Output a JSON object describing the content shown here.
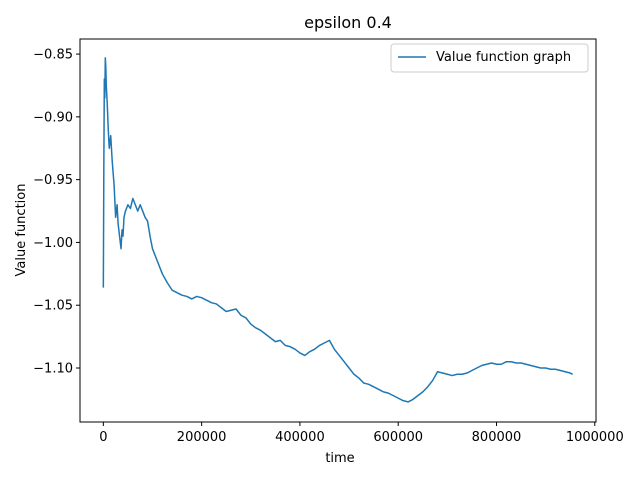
{
  "chart_data": {
    "type": "line",
    "title": "epsilon 0.4",
    "xlabel": "time",
    "ylabel": "Value function",
    "xlim": [
      -47500,
      1002500
    ],
    "ylim": [
      -1.143,
      -0.838
    ],
    "xticks": [
      0,
      200000,
      400000,
      600000,
      800000,
      1000000
    ],
    "xtick_labels": [
      "0",
      "200000",
      "400000",
      "600000",
      "800000",
      "1000000"
    ],
    "yticks": [
      -1.1,
      -1.05,
      -1.0,
      -0.95,
      -0.9,
      -0.85
    ],
    "ytick_labels": [
      "−1.10",
      "−1.05",
      "−1.00",
      "−0.95",
      "−0.90",
      "−0.85"
    ],
    "grid": false,
    "legend_placement": "top-right",
    "series": [
      {
        "name": "Value function graph",
        "color": "#1f77b4",
        "x": [
          0,
          1000,
          2000,
          3000,
          4000,
          5000,
          6000,
          8000,
          10000,
          12000,
          15000,
          18000,
          20000,
          22000,
          25000,
          28000,
          30000,
          33000,
          36000,
          38000,
          40000,
          42000,
          45000,
          50000,
          55000,
          60000,
          65000,
          70000,
          75000,
          80000,
          85000,
          90000,
          95000,
          100000,
          110000,
          120000,
          130000,
          140000,
          150000,
          160000,
          170000,
          180000,
          190000,
          200000,
          210000,
          220000,
          230000,
          240000,
          250000,
          260000,
          270000,
          280000,
          290000,
          300000,
          310000,
          320000,
          330000,
          340000,
          350000,
          360000,
          370000,
          380000,
          390000,
          400000,
          410000,
          420000,
          430000,
          440000,
          450000,
          460000,
          470000,
          480000,
          490000,
          500000,
          510000,
          520000,
          530000,
          540000,
          550000,
          560000,
          570000,
          580000,
          590000,
          600000,
          610000,
          620000,
          630000,
          640000,
          650000,
          660000,
          670000,
          680000,
          690000,
          700000,
          710000,
          720000,
          730000,
          740000,
          750000,
          760000,
          770000,
          780000,
          790000,
          800000,
          810000,
          820000,
          830000,
          840000,
          850000,
          860000,
          870000,
          880000,
          890000,
          900000,
          910000,
          920000,
          930000,
          940000,
          950000,
          955000
        ],
        "y": [
          -1.036,
          -0.94,
          -0.87,
          -0.885,
          -0.853,
          -0.86,
          -0.875,
          -0.89,
          -0.91,
          -0.925,
          -0.915,
          -0.935,
          -0.945,
          -0.955,
          -0.98,
          -0.97,
          -0.985,
          -0.995,
          -1.005,
          -0.99,
          -0.995,
          -0.98,
          -0.975,
          -0.97,
          -0.973,
          -0.965,
          -0.97,
          -0.975,
          -0.97,
          -0.975,
          -0.98,
          -0.983,
          -0.995,
          -1.005,
          -1.015,
          -1.025,
          -1.032,
          -1.038,
          -1.04,
          -1.042,
          -1.043,
          -1.045,
          -1.043,
          -1.044,
          -1.046,
          -1.048,
          -1.049,
          -1.052,
          -1.055,
          -1.054,
          -1.053,
          -1.058,
          -1.06,
          -1.065,
          -1.068,
          -1.07,
          -1.073,
          -1.076,
          -1.079,
          -1.078,
          -1.082,
          -1.083,
          -1.085,
          -1.088,
          -1.09,
          -1.087,
          -1.085,
          -1.082,
          -1.08,
          -1.078,
          -1.085,
          -1.09,
          -1.095,
          -1.1,
          -1.105,
          -1.108,
          -1.112,
          -1.113,
          -1.115,
          -1.117,
          -1.119,
          -1.12,
          -1.122,
          -1.124,
          -1.126,
          -1.127,
          -1.125,
          -1.122,
          -1.119,
          -1.115,
          -1.11,
          -1.103,
          -1.104,
          -1.105,
          -1.106,
          -1.105,
          -1.105,
          -1.104,
          -1.102,
          -1.1,
          -1.098,
          -1.097,
          -1.096,
          -1.097,
          -1.097,
          -1.095,
          -1.095,
          -1.096,
          -1.096,
          -1.097,
          -1.098,
          -1.099,
          -1.1,
          -1.1,
          -1.101,
          -1.101,
          -1.102,
          -1.103,
          -1.104,
          -1.105
        ]
      }
    ]
  }
}
